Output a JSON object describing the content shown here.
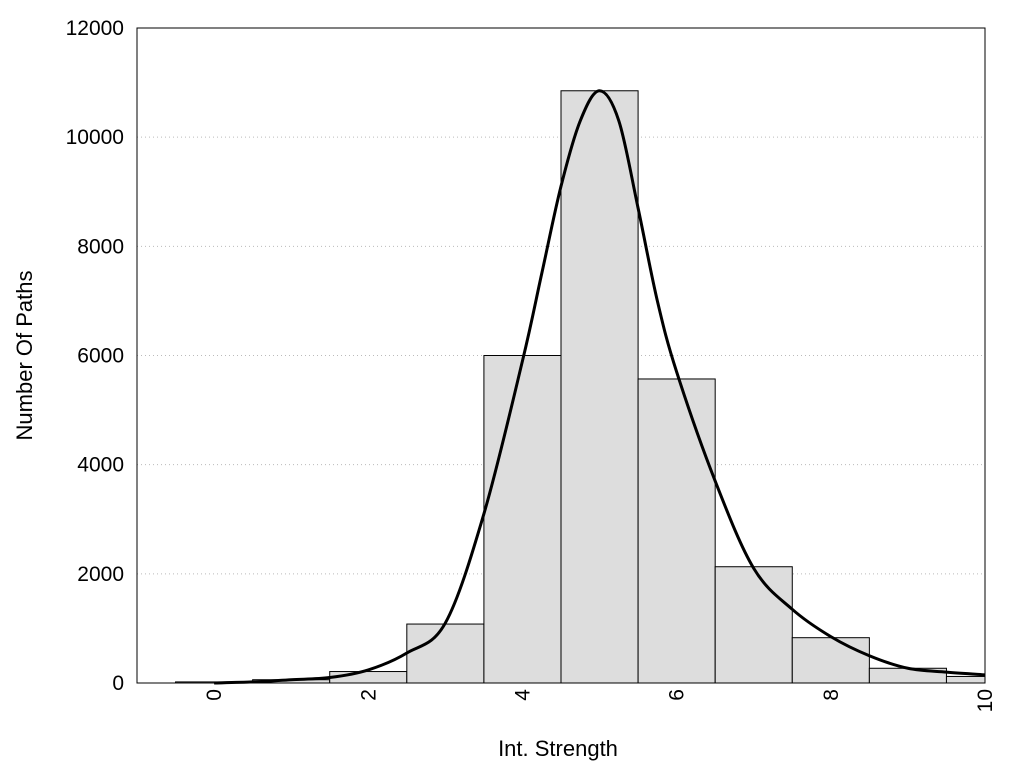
{
  "chart_data": {
    "type": "bar",
    "title": "",
    "xlabel": "Int. Strength",
    "ylabel": "Number Of Paths",
    "xlim": [
      -1,
      10
    ],
    "ylim": [
      0,
      12000
    ],
    "x_ticks": [
      "0",
      "2",
      "4",
      "6",
      "8",
      "10"
    ],
    "y_ticks": [
      "0",
      "2000",
      "4000",
      "6000",
      "8000",
      "10000",
      "12000"
    ],
    "grid": "horizontal dotted",
    "legend": "none",
    "bars": {
      "x": [
        0,
        1,
        2,
        3,
        4,
        5,
        6,
        7,
        8,
        9,
        10
      ],
      "values": [
        20,
        60,
        210,
        1080,
        6000,
        10850,
        5570,
        2130,
        830,
        270,
        120
      ],
      "width": 1
    },
    "curve": {
      "x": [
        0,
        0.5,
        1,
        1.5,
        2,
        2.5,
        3,
        3.5,
        4,
        4.25,
        4.5,
        4.75,
        5,
        5.25,
        5.5,
        5.75,
        6,
        6.5,
        7,
        7.5,
        8,
        8.5,
        9,
        9.5,
        10
      ],
      "values": [
        0,
        20,
        60,
        100,
        240,
        550,
        1100,
        3100,
        5900,
        7500,
        9100,
        10300,
        10850,
        10300,
        8700,
        7000,
        5700,
        3700,
        2100,
        1350,
        850,
        500,
        270,
        200,
        150
      ]
    },
    "colors": {
      "bar_fill": "#dddddd",
      "bar_stroke": "#000000",
      "curve": "#000000",
      "grid": "#bbbbbb"
    }
  }
}
